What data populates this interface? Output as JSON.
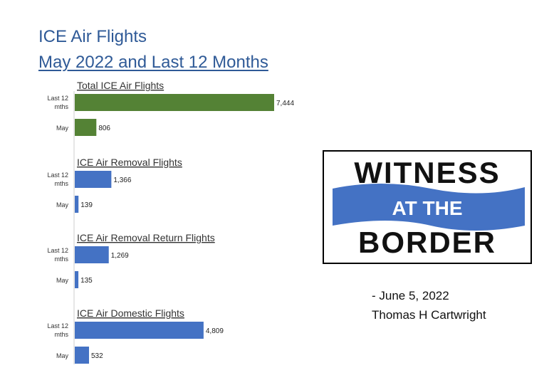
{
  "title": "ICE Air Flights",
  "subtitle": "May 2022 and Last 12 Months",
  "chart_data": [
    {
      "type": "bar",
      "title": "Total ICE Air Flights",
      "categories": [
        "Last 12 mths",
        "May"
      ],
      "values": [
        7444,
        806
      ],
      "labels": [
        "7,444",
        "806"
      ],
      "color": "#548235"
    },
    {
      "type": "bar",
      "title": "ICE Air Removal Flights",
      "categories": [
        "Last 12 mths",
        "May"
      ],
      "values": [
        1366,
        139
      ],
      "labels": [
        "1,366",
        "139"
      ],
      "color": "#4472c4"
    },
    {
      "type": "bar",
      "title": "ICE Air Removal Return Flights",
      "categories": [
        "Last 12 mths",
        "May"
      ],
      "values": [
        1269,
        135
      ],
      "labels": [
        "1,269",
        "135"
      ],
      "color": "#4472c4"
    },
    {
      "type": "bar",
      "title": "ICE Air Domestic Flights",
      "categories": [
        "Last 12 mths",
        "May"
      ],
      "values": [
        4809,
        532
      ],
      "labels": [
        "4,809",
        "532"
      ],
      "color": "#4472c4"
    }
  ],
  "logo": {
    "line1": "WITNESS",
    "line2": "AT THE",
    "line3": "BORDER",
    "banner_color": "#4472c4"
  },
  "credit": {
    "date_line": "-  June 5, 2022",
    "author": "Thomas H Cartwright"
  }
}
